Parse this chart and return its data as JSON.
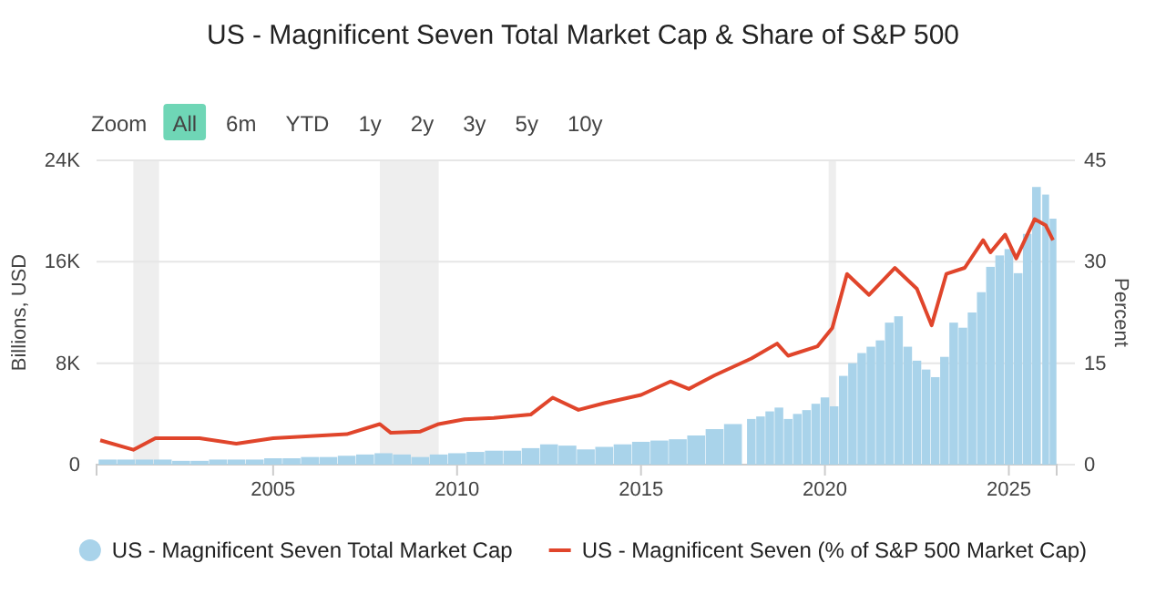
{
  "chart_data": {
    "type": "bar",
    "title": "US - Magnificent Seven Total Market Cap & Share of S&P 500",
    "ylabel": "Billions, USD",
    "y2label": "Percent",
    "annotations": [
      "Zoom",
      "All",
      "6m",
      "YTD",
      "1y",
      "2y",
      "3y",
      "5y",
      "10y"
    ],
    "xlim": [
      2000.2,
      2026.3
    ],
    "xticks": [
      2005,
      2010,
      2015,
      2020,
      2025
    ],
    "ylim": [
      0,
      24000
    ],
    "yticks": [
      0,
      {
        "value": 8000,
        "label": "8K"
      },
      {
        "value": 16000,
        "label": "16K"
      },
      {
        "value": 24000,
        "label": "24K"
      }
    ],
    "y2lim": [
      0,
      45
    ],
    "y2ticks": [
      0,
      15,
      30,
      45
    ],
    "grid": "y",
    "legend": "bottom",
    "bands": [
      {
        "axis": "x",
        "from": 2001.2,
        "to": 2001.9,
        "color": "#eeeeee"
      },
      {
        "axis": "x",
        "from": 2007.9,
        "to": 2009.5,
        "color": "#eeeeee"
      },
      {
        "axis": "x",
        "from": 2020.1,
        "to": 2020.3,
        "color": "#eeeeee"
      }
    ],
    "series": [
      {
        "name": "US - Magnificent Seven Total Market Cap",
        "color": "#a9d3ea",
        "x": [
          2000.5,
          2001,
          2001.5,
          2002,
          2002.5,
          2003,
          2003.5,
          2004,
          2004.5,
          2005,
          2005.5,
          2006,
          2006.5,
          2007,
          2007.5,
          2008,
          2008.5,
          2009,
          2009.5,
          2010,
          2010.5,
          2011,
          2011.5,
          2012,
          2012.5,
          2013,
          2013.5,
          2014,
          2014.5,
          2015,
          2015.5,
          2016,
          2016.5,
          2017,
          2017.5,
          2018,
          2018.25,
          2018.5,
          2018.75,
          2019,
          2019.25,
          2019.5,
          2019.75,
          2020,
          2020.25,
          2020.5,
          2020.75,
          2021,
          2021.25,
          2021.5,
          2021.75,
          2022,
          2022.25,
          2022.5,
          2022.75,
          2023,
          2023.25,
          2023.5,
          2023.75,
          2024,
          2024.25,
          2024.5,
          2024.75,
          2025,
          2025.25,
          2025.5,
          2025.75,
          2026,
          2026.2
        ],
        "values": [
          400,
          400,
          400,
          400,
          300,
          300,
          400,
          400,
          400,
          500,
          500,
          600,
          600,
          700,
          800,
          900,
          800,
          600,
          800,
          900,
          1000,
          1100,
          1100,
          1300,
          1600,
          1500,
          1200,
          1400,
          1600,
          1800,
          1900,
          2000,
          2300,
          2800,
          3200,
          3600,
          3800,
          4200,
          4500,
          3600,
          4000,
          4300,
          4800,
          5300,
          4600,
          7000,
          8000,
          8800,
          9300,
          9800,
          11200,
          11700,
          9300,
          8200,
          7500,
          6900,
          8500,
          11200,
          10800,
          12000,
          13600,
          15600,
          16500,
          17000,
          15100,
          18200,
          21900,
          21300,
          19400
        ]
      },
      {
        "name": "US - Magnificent Seven (% of S&P 500 Market Cap)",
        "type": "line",
        "axis": "y2",
        "color": "#e0452b",
        "x": [
          2000.3,
          2001.2,
          2001.8,
          2003,
          2004,
          2005,
          2006,
          2007,
          2007.9,
          2008.2,
          2009,
          2009.5,
          2010.2,
          2011,
          2012,
          2012.6,
          2013.3,
          2014,
          2015,
          2015.8,
          2016.3,
          2017,
          2018,
          2018.7,
          2019,
          2019.8,
          2020.2,
          2020.6,
          2021.2,
          2021.9,
          2022.5,
          2022.9,
          2023.3,
          2023.8,
          2024.3,
          2024.5,
          2024.9,
          2025.2,
          2025.7,
          2026,
          2026.2
        ],
        "values": [
          3.6,
          2.2,
          3.9,
          3.9,
          3.1,
          3.9,
          4.2,
          4.5,
          6.0,
          4.7,
          4.9,
          6.0,
          6.7,
          6.9,
          7.4,
          9.9,
          8.1,
          9.1,
          10.3,
          12.3,
          11.2,
          13.2,
          15.7,
          17.9,
          16.1,
          17.5,
          20.2,
          28.2,
          25.1,
          29.1,
          26.0,
          20.6,
          28.2,
          29.1,
          33.2,
          31.4,
          34.0,
          30.5,
          36.3,
          35.4,
          33.2
        ]
      }
    ]
  }
}
